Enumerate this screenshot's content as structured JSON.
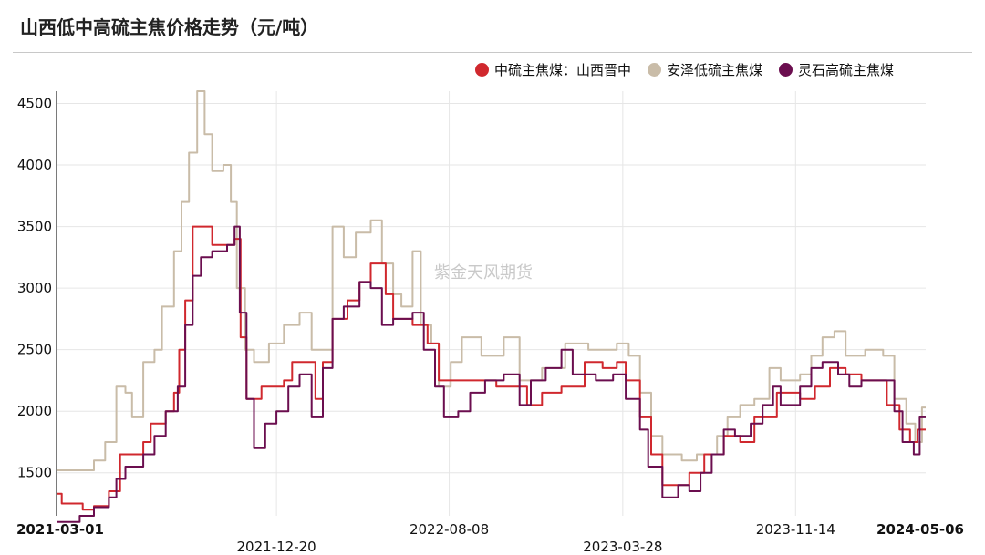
{
  "title": "山西低中高硫主焦价格走势（元/吨）",
  "watermark": "紫金天风期货",
  "colors": {
    "mid_sulfur": "#d0282e",
    "anze_low": "#c9bca8",
    "lingshi_high": "#6b0e4f",
    "grid": "#e6e6e6",
    "axis": "#222222"
  },
  "chart_data": {
    "type": "line",
    "title": "山西低中高硫主焦价格走势（元/吨）",
    "xlabel": "",
    "ylabel": "",
    "ylim": [
      1150,
      4600
    ],
    "x_range": [
      "2021-03-01",
      "2024-05-06"
    ],
    "y_ticks": [
      1500,
      2000,
      2500,
      3000,
      3500,
      4000,
      4500
    ],
    "x_ticks": [
      {
        "label": "2021-03-01",
        "date": "2021-03-01",
        "row": 0,
        "bold": true
      },
      {
        "label": "2021-12-20",
        "date": "2021-12-20",
        "row": 1,
        "bold": false
      },
      {
        "label": "2022-08-08",
        "date": "2022-08-08",
        "row": 0,
        "bold": false
      },
      {
        "label": "2023-03-28",
        "date": "2023-03-28",
        "row": 1,
        "bold": false
      },
      {
        "label": "2023-11-14",
        "date": "2023-11-14",
        "row": 0,
        "bold": false
      },
      {
        "label": "2024-05-06",
        "date": "2024-05-06",
        "row": 0,
        "bold": true
      }
    ],
    "grid": true,
    "legend_position": "top-right",
    "series": [
      {
        "name": "中硫主焦煤：山西晋中",
        "color": "#d0282e",
        "points": [
          [
            "2021-03-01",
            1330
          ],
          [
            "2021-03-08",
            1250
          ],
          [
            "2021-04-05",
            1200
          ],
          [
            "2021-04-20",
            1230
          ],
          [
            "2021-05-10",
            1350
          ],
          [
            "2021-05-25",
            1650
          ],
          [
            "2021-06-25",
            1750
          ],
          [
            "2021-07-05",
            1900
          ],
          [
            "2021-07-25",
            2000
          ],
          [
            "2021-08-05",
            2150
          ],
          [
            "2021-08-12",
            2500
          ],
          [
            "2021-08-20",
            2900
          ],
          [
            "2021-08-30",
            3500
          ],
          [
            "2021-09-25",
            3350
          ],
          [
            "2021-10-25",
            3400
          ],
          [
            "2021-11-02",
            2600
          ],
          [
            "2021-11-10",
            2100
          ],
          [
            "2021-11-30",
            2200
          ],
          [
            "2021-12-30",
            2250
          ],
          [
            "2022-01-10",
            2400
          ],
          [
            "2022-02-10",
            2100
          ],
          [
            "2022-02-20",
            2400
          ],
          [
            "2022-03-05",
            2750
          ],
          [
            "2022-03-25",
            2900
          ],
          [
            "2022-04-10",
            3050
          ],
          [
            "2022-04-25",
            3200
          ],
          [
            "2022-05-15",
            2950
          ],
          [
            "2022-05-25",
            2750
          ],
          [
            "2022-06-20",
            2700
          ],
          [
            "2022-07-10",
            2550
          ],
          [
            "2022-07-25",
            2250
          ],
          [
            "2022-09-15",
            2250
          ],
          [
            "2022-10-10",
            2200
          ],
          [
            "2022-11-20",
            2050
          ],
          [
            "2022-12-10",
            2150
          ],
          [
            "2023-01-05",
            2200
          ],
          [
            "2023-02-05",
            2400
          ],
          [
            "2023-03-01",
            2350
          ],
          [
            "2023-03-20",
            2400
          ],
          [
            "2023-04-01",
            2250
          ],
          [
            "2023-04-20",
            1950
          ],
          [
            "2023-05-05",
            1650
          ],
          [
            "2023-05-20",
            1400
          ],
          [
            "2023-06-25",
            1500
          ],
          [
            "2023-07-15",
            1650
          ],
          [
            "2023-08-10",
            1800
          ],
          [
            "2023-09-01",
            1750
          ],
          [
            "2023-09-20",
            1950
          ],
          [
            "2023-10-20",
            2150
          ],
          [
            "2023-11-20",
            2100
          ],
          [
            "2023-12-10",
            2200
          ],
          [
            "2023-12-30",
            2350
          ],
          [
            "2024-01-20",
            2300
          ],
          [
            "2024-02-10",
            2250
          ],
          [
            "2024-03-15",
            2050
          ],
          [
            "2024-04-01",
            1850
          ],
          [
            "2024-04-15",
            1750
          ],
          [
            "2024-04-25",
            1850
          ],
          [
            "2024-05-06",
            1850
          ]
        ]
      },
      {
        "name": "安泽低硫主焦煤",
        "color": "#c9bca8",
        "points": [
          [
            "2021-03-01",
            1520
          ],
          [
            "2021-04-20",
            1600
          ],
          [
            "2021-05-05",
            1750
          ],
          [
            "2021-05-20",
            2200
          ],
          [
            "2021-06-01",
            2150
          ],
          [
            "2021-06-10",
            1950
          ],
          [
            "2021-06-25",
            2400
          ],
          [
            "2021-07-10",
            2500
          ],
          [
            "2021-07-20",
            2850
          ],
          [
            "2021-08-05",
            3300
          ],
          [
            "2021-08-15",
            3700
          ],
          [
            "2021-08-25",
            4100
          ],
          [
            "2021-09-05",
            4600
          ],
          [
            "2021-09-15",
            4250
          ],
          [
            "2021-09-25",
            3950
          ],
          [
            "2021-10-10",
            4000
          ],
          [
            "2021-10-20",
            3700
          ],
          [
            "2021-10-28",
            3000
          ],
          [
            "2021-11-08",
            2500
          ],
          [
            "2021-11-20",
            2400
          ],
          [
            "2021-12-10",
            2550
          ],
          [
            "2021-12-30",
            2700
          ],
          [
            "2022-01-20",
            2800
          ],
          [
            "2022-02-05",
            2500
          ],
          [
            "2022-02-25",
            2500
          ],
          [
            "2022-03-05",
            3500
          ],
          [
            "2022-03-20",
            3250
          ],
          [
            "2022-04-05",
            3450
          ],
          [
            "2022-04-25",
            3550
          ],
          [
            "2022-05-10",
            3200
          ],
          [
            "2022-05-25",
            2950
          ],
          [
            "2022-06-05",
            2850
          ],
          [
            "2022-06-20",
            3300
          ],
          [
            "2022-07-01",
            2700
          ],
          [
            "2022-07-15",
            2550
          ],
          [
            "2022-07-25",
            2200
          ],
          [
            "2022-08-10",
            2400
          ],
          [
            "2022-08-25",
            2600
          ],
          [
            "2022-09-20",
            2450
          ],
          [
            "2022-10-20",
            2600
          ],
          [
            "2022-11-10",
            2250
          ],
          [
            "2022-12-10",
            2350
          ],
          [
            "2023-01-10",
            2550
          ],
          [
            "2023-02-10",
            2500
          ],
          [
            "2023-03-20",
            2550
          ],
          [
            "2023-04-05",
            2450
          ],
          [
            "2023-04-20",
            2150
          ],
          [
            "2023-05-05",
            1800
          ],
          [
            "2023-05-20",
            1650
          ],
          [
            "2023-06-15",
            1600
          ],
          [
            "2023-07-05",
            1650
          ],
          [
            "2023-08-01",
            1800
          ],
          [
            "2023-08-15",
            1950
          ],
          [
            "2023-09-01",
            2050
          ],
          [
            "2023-09-20",
            2100
          ],
          [
            "2023-10-10",
            2350
          ],
          [
            "2023-10-25",
            2250
          ],
          [
            "2023-11-20",
            2300
          ],
          [
            "2023-12-05",
            2450
          ],
          [
            "2023-12-20",
            2600
          ],
          [
            "2024-01-05",
            2650
          ],
          [
            "2024-01-20",
            2450
          ],
          [
            "2024-02-15",
            2500
          ],
          [
            "2024-03-10",
            2450
          ],
          [
            "2024-03-25",
            2100
          ],
          [
            "2024-04-10",
            1900
          ],
          [
            "2024-04-22",
            1750
          ],
          [
            "2024-05-01",
            2030
          ],
          [
            "2024-05-06",
            2030
          ]
        ]
      },
      {
        "name": "灵石高硫主焦煤",
        "color": "#6b0e4f",
        "points": [
          [
            "2021-03-01",
            1100
          ],
          [
            "2021-04-01",
            1150
          ],
          [
            "2021-04-20",
            1220
          ],
          [
            "2021-05-10",
            1300
          ],
          [
            "2021-05-20",
            1450
          ],
          [
            "2021-06-01",
            1550
          ],
          [
            "2021-06-25",
            1650
          ],
          [
            "2021-07-10",
            1800
          ],
          [
            "2021-07-25",
            2000
          ],
          [
            "2021-08-10",
            2200
          ],
          [
            "2021-08-20",
            2700
          ],
          [
            "2021-08-30",
            3100
          ],
          [
            "2021-09-10",
            3250
          ],
          [
            "2021-09-25",
            3300
          ],
          [
            "2021-10-15",
            3350
          ],
          [
            "2021-10-25",
            3500
          ],
          [
            "2021-11-01",
            2800
          ],
          [
            "2021-11-10",
            2100
          ],
          [
            "2021-11-20",
            1700
          ],
          [
            "2021-12-05",
            1900
          ],
          [
            "2021-12-20",
            2000
          ],
          [
            "2022-01-05",
            2200
          ],
          [
            "2022-01-20",
            2300
          ],
          [
            "2022-02-05",
            1950
          ],
          [
            "2022-02-20",
            2350
          ],
          [
            "2022-03-05",
            2750
          ],
          [
            "2022-03-20",
            2850
          ],
          [
            "2022-04-10",
            3050
          ],
          [
            "2022-04-25",
            3000
          ],
          [
            "2022-05-10",
            2700
          ],
          [
            "2022-05-25",
            2750
          ],
          [
            "2022-06-20",
            2800
          ],
          [
            "2022-07-05",
            2500
          ],
          [
            "2022-07-20",
            2200
          ],
          [
            "2022-08-01",
            1950
          ],
          [
            "2022-08-20",
            2000
          ],
          [
            "2022-09-05",
            2150
          ],
          [
            "2022-09-25",
            2250
          ],
          [
            "2022-10-20",
            2300
          ],
          [
            "2022-11-10",
            2050
          ],
          [
            "2022-11-25",
            2250
          ],
          [
            "2022-12-15",
            2350
          ],
          [
            "2023-01-05",
            2500
          ],
          [
            "2023-01-20",
            2300
          ],
          [
            "2023-02-20",
            2250
          ],
          [
            "2023-03-15",
            2300
          ],
          [
            "2023-04-01",
            2100
          ],
          [
            "2023-04-20",
            1850
          ],
          [
            "2023-05-01",
            1550
          ],
          [
            "2023-05-20",
            1300
          ],
          [
            "2023-06-10",
            1400
          ],
          [
            "2023-06-25",
            1350
          ],
          [
            "2023-07-10",
            1500
          ],
          [
            "2023-07-25",
            1650
          ],
          [
            "2023-08-10",
            1850
          ],
          [
            "2023-08-25",
            1800
          ],
          [
            "2023-09-15",
            1900
          ],
          [
            "2023-10-01",
            2050
          ],
          [
            "2023-10-15",
            2200
          ],
          [
            "2023-10-25",
            2050
          ],
          [
            "2023-11-20",
            2200
          ],
          [
            "2023-12-05",
            2350
          ],
          [
            "2023-12-20",
            2400
          ],
          [
            "2024-01-10",
            2300
          ],
          [
            "2024-01-25",
            2200
          ],
          [
            "2024-02-10",
            2250
          ],
          [
            "2024-03-05",
            2250
          ],
          [
            "2024-03-25",
            2000
          ],
          [
            "2024-04-05",
            1750
          ],
          [
            "2024-04-20",
            1650
          ],
          [
            "2024-04-28",
            1950
          ],
          [
            "2024-05-06",
            1950
          ]
        ]
      }
    ]
  }
}
